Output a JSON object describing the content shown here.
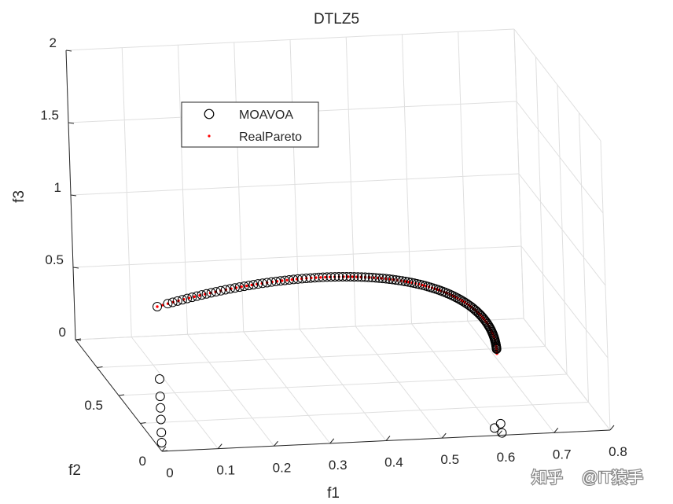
{
  "chart_data": {
    "type": "scatter",
    "projection": "3d",
    "title": "DTLZ5",
    "xlabel": "f1",
    "ylabel": "f2",
    "zlabel": "f3",
    "xlim": [
      0,
      0.8
    ],
    "ylim": [
      0,
      1
    ],
    "zlim": [
      0,
      2
    ],
    "xticks": [
      "0",
      "0.1",
      "0.2",
      "0.3",
      "0.4",
      "0.5",
      "0.6",
      "0.7",
      "0.8"
    ],
    "yticks": [
      "0",
      "0.5"
    ],
    "zticks": [
      "0",
      "0.5",
      "1",
      "1.5",
      "2"
    ],
    "grid": true,
    "legend_position": "top-left",
    "legend": [
      "MOAVOA",
      "RealPareto"
    ],
    "series": [
      {
        "name": "MOAVOA",
        "marker": "open-circle",
        "color": "#000000",
        "points": [
          {
            "x": 0.0,
            "y": 0.0,
            "z": 1.0
          },
          {
            "x": 0.0,
            "y": 0.0,
            "z": 0.5
          },
          {
            "x": 0.0,
            "y": 0.0,
            "z": 0.38
          },
          {
            "x": 0.0,
            "y": 0.0,
            "z": 0.3
          },
          {
            "x": 0.0,
            "y": 0.0,
            "z": 0.22
          },
          {
            "x": 0.0,
            "y": 0.0,
            "z": 0.13
          },
          {
            "x": 0.0,
            "y": 0.0,
            "z": 0.06
          },
          {
            "x": 0.62,
            "y": 0.1,
            "z": 0.0
          },
          {
            "x": 0.61,
            "y": 0.02,
            "z": 0.0
          },
          {
            "x": 0.6,
            "y": 0.04,
            "z": 0.02
          }
        ],
        "curve_start": 0.02,
        "curve_end": 0.98,
        "curve_count": 120
      },
      {
        "name": "RealPareto",
        "marker": "point",
        "color": "#ff0000",
        "curve": "x = cos(t)/sqrt(2), y = cos(t)/sqrt(2), z = sin(t), t from 0 to pi/2",
        "count": 100
      }
    ]
  },
  "watermark": {
    "brand": "知乎",
    "handle": "@IT猿手"
  }
}
